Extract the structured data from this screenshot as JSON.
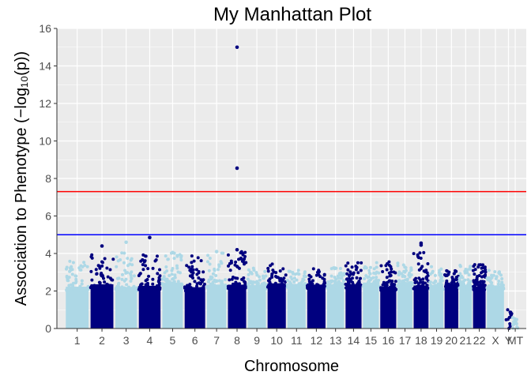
{
  "chart_data": {
    "type": "scatter",
    "title": "My Manhattan Plot",
    "xlabel": "Chromosome",
    "ylabel": "Association to Phenotype (−log₁₀(p))",
    "ylim": [
      0,
      16
    ],
    "yticks": [
      0,
      2,
      4,
      6,
      8,
      10,
      12,
      14,
      16
    ],
    "grid": true,
    "colors": {
      "panel_bg": "#EBEBEB",
      "grid": "#FFFFFF",
      "dark_points": "#00007F",
      "light_points": "#ADD8E6",
      "genome_wide_line": "#FF0000",
      "suggestive_line": "#0000FF"
    },
    "thresholds": {
      "genome_wide": 7.3,
      "suggestive": 5.0
    },
    "chromosomes": [
      {
        "label": "1",
        "max": 3.5,
        "color": "light"
      },
      {
        "label": "2",
        "max": 4.4,
        "color": "dark"
      },
      {
        "label": "3",
        "max": 4.6,
        "color": "light"
      },
      {
        "label": "4",
        "max": 4.9,
        "color": "dark"
      },
      {
        "label": "5",
        "max": 4.1,
        "color": "light"
      },
      {
        "label": "6",
        "max": 3.8,
        "color": "dark"
      },
      {
        "label": "7",
        "max": 4.1,
        "color": "light"
      },
      {
        "label": "8",
        "max": 15.0,
        "color": "dark"
      },
      {
        "label": "9",
        "max": 3.2,
        "color": "light"
      },
      {
        "label": "10",
        "max": 3.4,
        "color": "dark"
      },
      {
        "label": "11",
        "max": 3.0,
        "color": "light"
      },
      {
        "label": "12",
        "max": 3.1,
        "color": "dark"
      },
      {
        "label": "13",
        "max": 3.2,
        "color": "light"
      },
      {
        "label": "14",
        "max": 3.5,
        "color": "dark"
      },
      {
        "label": "15",
        "max": 3.7,
        "color": "light"
      },
      {
        "label": "16",
        "max": 3.5,
        "color": "dark"
      },
      {
        "label": "17",
        "max": 3.4,
        "color": "light"
      },
      {
        "label": "18",
        "max": 4.6,
        "color": "dark"
      },
      {
        "label": "19",
        "max": 3.2,
        "color": "light"
      },
      {
        "label": "20",
        "max": 3.0,
        "color": "dark"
      },
      {
        "label": "21",
        "max": 3.3,
        "color": "light"
      },
      {
        "label": "22",
        "max": 3.4,
        "color": "dark"
      },
      {
        "label": "X",
        "max": 3.0,
        "color": "light"
      },
      {
        "label": "Y",
        "max": 1.0,
        "color": "dark"
      },
      {
        "label": "MT",
        "max": 0.9,
        "color": "light"
      }
    ],
    "highlighted_points": [
      {
        "chromosome": "8",
        "y": 15.0
      },
      {
        "chromosome": "8",
        "y": 8.55
      },
      {
        "chromosome": "8",
        "y": 4.2
      },
      {
        "chromosome": "4",
        "y": 4.85
      },
      {
        "chromosome": "2",
        "y": 4.4
      },
      {
        "chromosome": "18",
        "y": 4.55
      },
      {
        "chromosome": "18",
        "y": 4.45
      },
      {
        "chromosome": "3",
        "y": 4.6
      },
      {
        "chromosome": "7",
        "y": 4.1
      },
      {
        "chromosome": "5",
        "y": 4.05
      }
    ]
  }
}
